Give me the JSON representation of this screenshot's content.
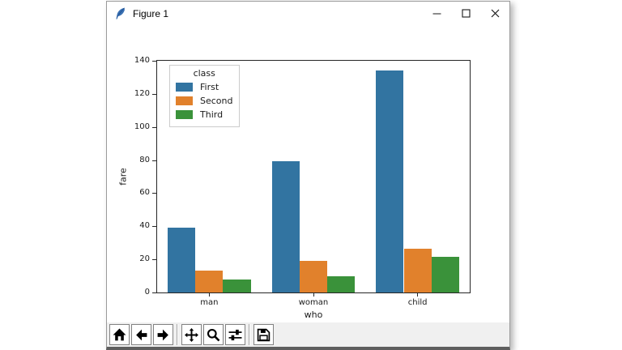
{
  "window": {
    "title": "Figure 1",
    "app_icon": "tk-feather-icon",
    "controls": [
      {
        "id": "minimize",
        "icon": "minimize-icon"
      },
      {
        "id": "maximize",
        "icon": "maximize-icon"
      },
      {
        "id": "close",
        "icon": "close-icon"
      }
    ]
  },
  "chart_data": {
    "type": "bar",
    "title": "",
    "xlabel": "who",
    "ylabel": "fare",
    "categories": [
      "man",
      "woman",
      "child"
    ],
    "series": [
      {
        "name": "First",
        "color": "#3274a1",
        "values": [
          39.4,
          79.5,
          134.0
        ]
      },
      {
        "name": "Second",
        "color": "#e1812c",
        "values": [
          13.3,
          18.9,
          26.2
        ]
      },
      {
        "name": "Third",
        "color": "#3a923a",
        "values": [
          8.0,
          9.6,
          21.4
        ]
      }
    ],
    "legend": {
      "title": "class",
      "position": "upper left"
    },
    "ylim": [
      0,
      140
    ],
    "yticks": [
      0,
      20,
      40,
      60,
      80,
      100,
      120,
      140
    ],
    "grid": false,
    "spine_color": "#262626"
  },
  "toolbar": {
    "background": "#f0f0f0",
    "buttons": [
      {
        "id": "home",
        "icon": "home-icon"
      },
      {
        "id": "back",
        "icon": "back-arrow-icon"
      },
      {
        "id": "forward",
        "icon": "forward-arrow-icon"
      },
      {
        "sep": true
      },
      {
        "id": "pan",
        "icon": "pan-move-icon"
      },
      {
        "id": "zoom",
        "icon": "zoom-magnifier-icon"
      },
      {
        "id": "subplots",
        "icon": "subplots-sliders-icon"
      },
      {
        "sep": true
      },
      {
        "id": "save",
        "icon": "save-floppy-icon"
      }
    ]
  }
}
